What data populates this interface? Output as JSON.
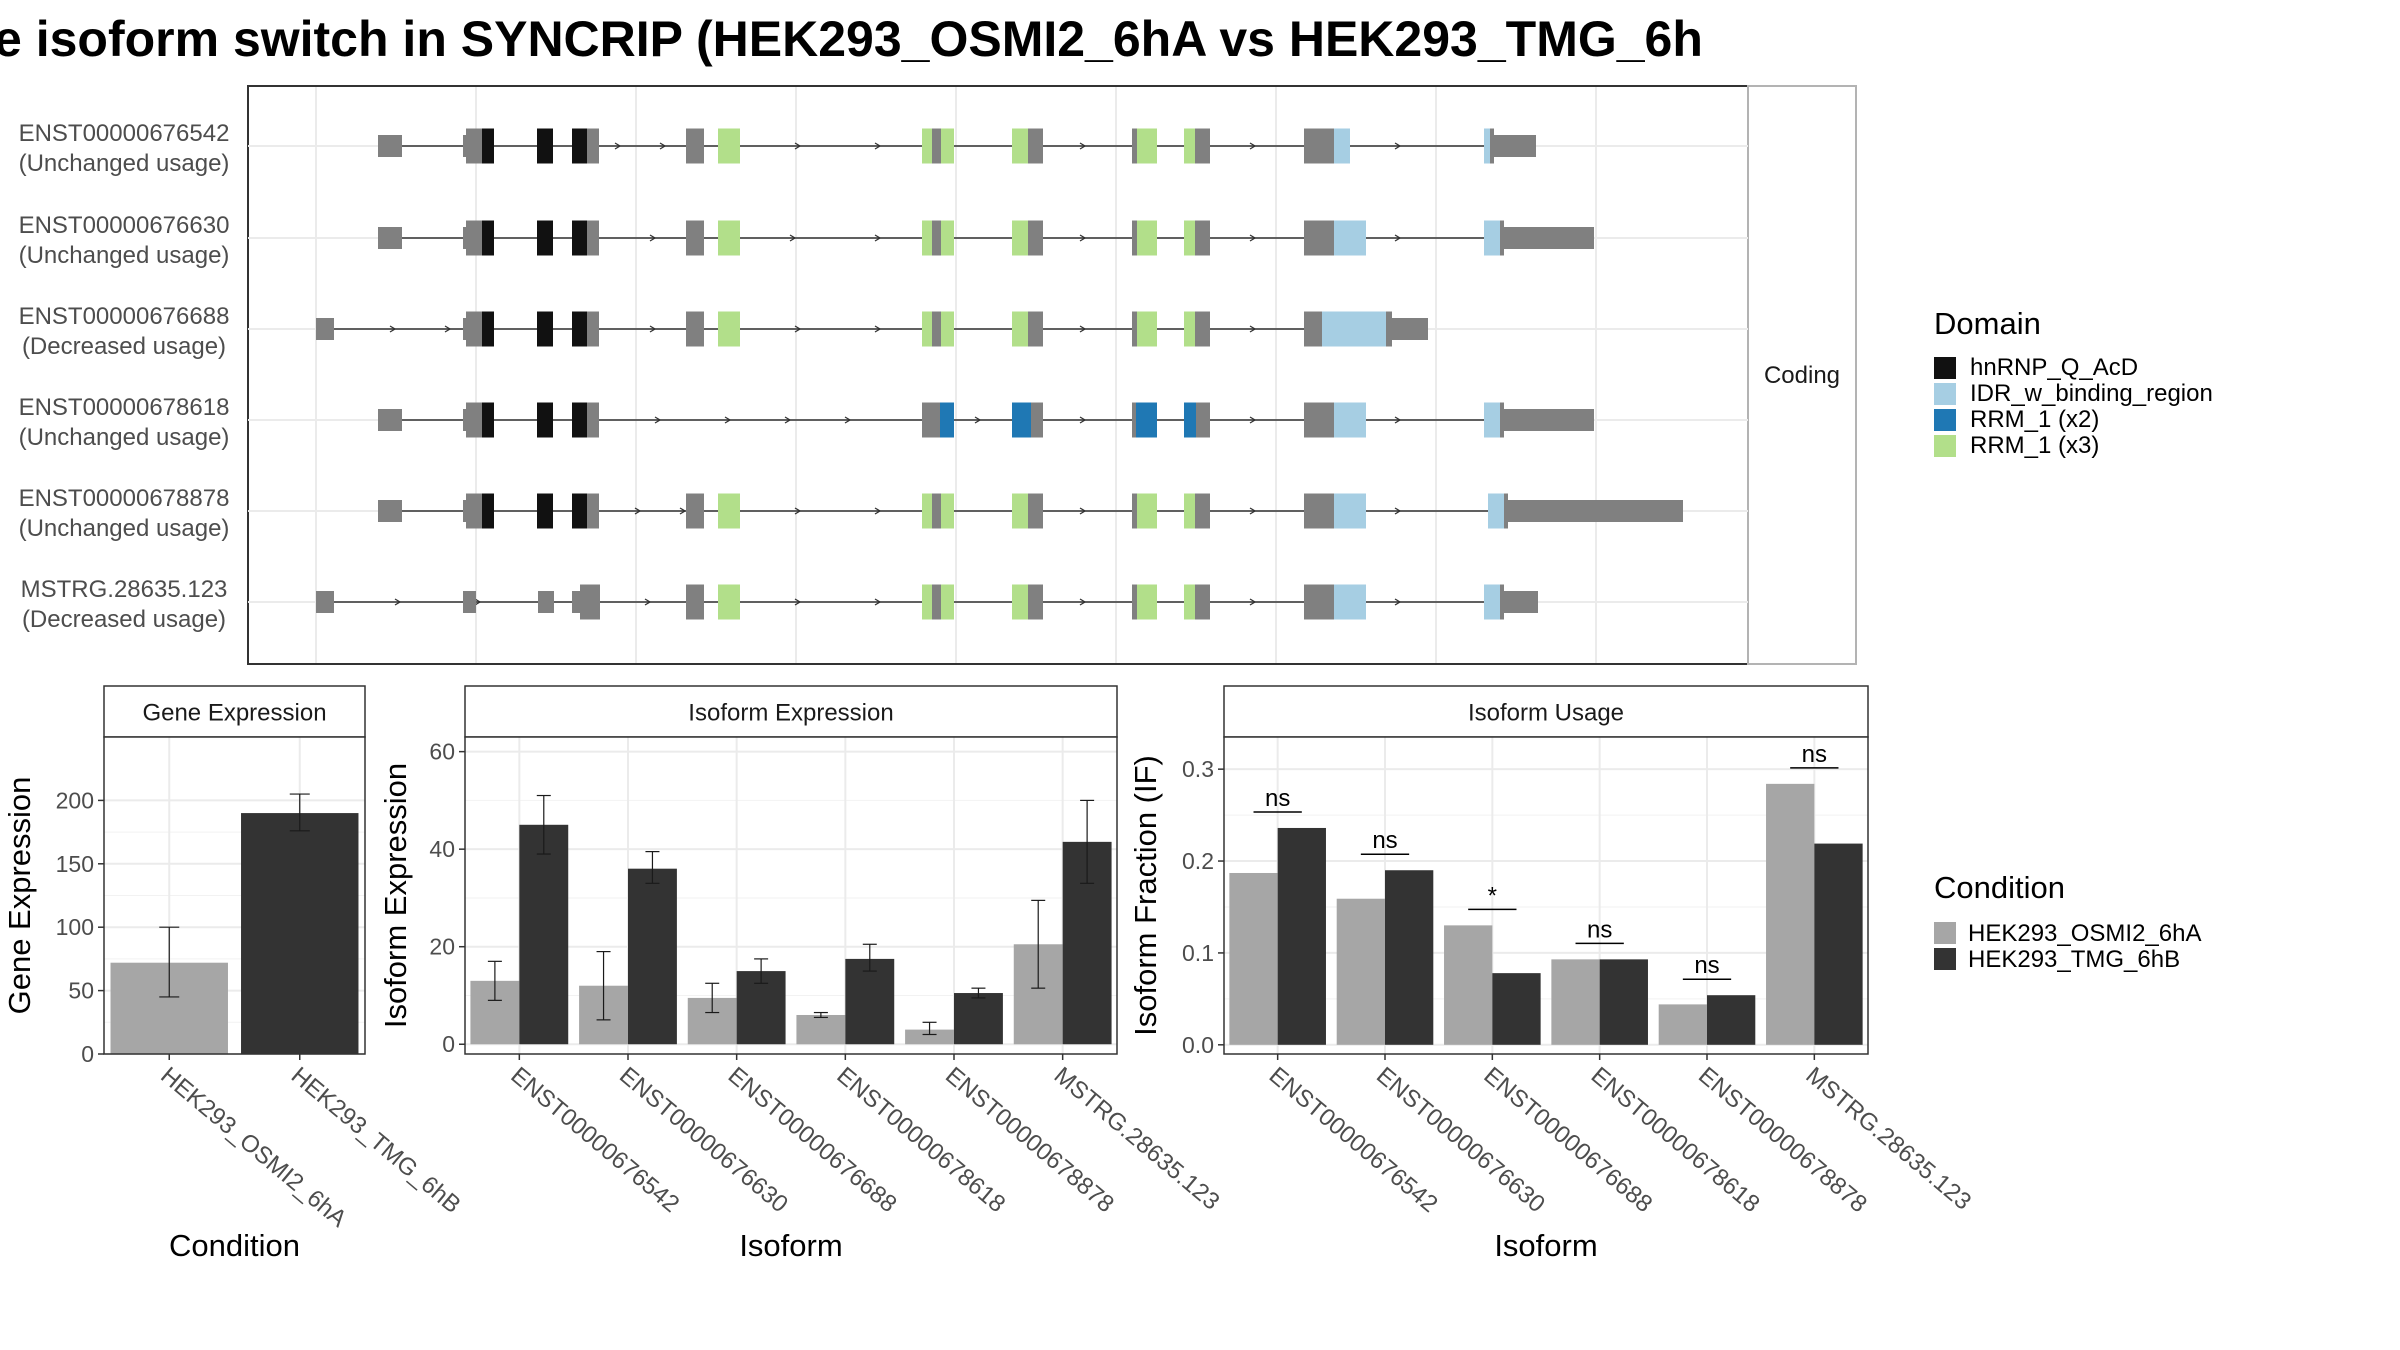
{
  "title": "e isoform switch in SYNCRIP (HEK293_OSMI2_6hA vs HEK293_TMG_6h",
  "colors": {
    "exon": "#808080",
    "hnRNP_Q_AcD": "#111111",
    "IDR_w_binding_region": "#a6cee3",
    "RRM_1_x2": "#1f78b4",
    "RRM_1_x3": "#b2df8a",
    "cond1": "#a6a6a6",
    "cond2": "#333333"
  },
  "structure": {
    "strip_label": "Coding",
    "isoforms": [
      {
        "id": "ENST00000676542",
        "usage": "(Unchanged usage)"
      },
      {
        "id": "ENST00000676630",
        "usage": "(Unchanged usage)"
      },
      {
        "id": "ENST00000676688",
        "usage": "(Decreased usage)"
      },
      {
        "id": "ENST00000678618",
        "usage": "(Unchanged usage)"
      },
      {
        "id": "ENST00000678878",
        "usage": "(Unchanged usage)"
      },
      {
        "id": "MSTRG.28635.123",
        "usage": "(Decreased usage)"
      }
    ],
    "legend_title": "Domain",
    "legend_items": [
      {
        "label": "hnRNP_Q_AcD",
        "color": "#111111"
      },
      {
        "label": "IDR_w_binding_region",
        "color": "#a6cee3"
      },
      {
        "label": "RRM_1 (x2)",
        "color": "#1f78b4"
      },
      {
        "label": "RRM_1 (x3)",
        "color": "#b2df8a"
      }
    ]
  },
  "condition_legend": {
    "title": "Condition",
    "items": [
      {
        "label": "HEK293_OSMI2_6hA",
        "color": "#a6a6a6"
      },
      {
        "label": "HEK293_TMG_6hB",
        "color": "#333333"
      }
    ]
  },
  "chart_data": [
    {
      "type": "bar",
      "title": "Gene Expression",
      "xlabel": "Condition",
      "ylabel": "Gene Expression",
      "categories": [
        "HEK293_OSMI2_6hA",
        "HEK293_TMG_6hB"
      ],
      "values": [
        72,
        190
      ],
      "err_low": [
        45,
        176
      ],
      "err_high": [
        100,
        205
      ],
      "yticks": [
        0,
        50,
        100,
        150,
        200
      ],
      "ylim": [
        0,
        250
      ]
    },
    {
      "type": "bar",
      "title": "Isoform Expression",
      "xlabel": "Isoform",
      "ylabel": "Isoform Expression",
      "categories": [
        "ENST00000676542",
        "ENST00000676630",
        "ENST00000676688",
        "ENST00000678618",
        "ENST00000678878",
        "MSTRG.28635.123"
      ],
      "series": [
        {
          "name": "HEK293_OSMI2_6hA",
          "values": [
            13,
            12,
            9.5,
            6,
            3,
            20.5
          ],
          "err_low": [
            9,
            5,
            6.5,
            5.5,
            2,
            11.5
          ],
          "err_high": [
            17,
            19,
            12.5,
            6.5,
            4.5,
            29.5
          ]
        },
        {
          "name": "HEK293_TMG_6hB",
          "values": [
            45,
            36,
            15,
            17.5,
            10.5,
            41.5
          ],
          "err_low": [
            39,
            33,
            12.5,
            15,
            9.5,
            33
          ],
          "err_high": [
            51,
            39.5,
            17.5,
            20.5,
            11.5,
            50
          ]
        }
      ],
      "yticks": [
        0,
        20,
        40,
        60
      ],
      "ylim": [
        -2,
        63
      ]
    },
    {
      "type": "bar",
      "title": "Isoform Usage",
      "xlabel": "Isoform",
      "ylabel": "Isoform Fraction (IF)",
      "categories": [
        "ENST00000676542",
        "ENST00000676630",
        "ENST00000676688",
        "ENST00000678618",
        "ENST00000678878",
        "MSTRG.28635.123"
      ],
      "series": [
        {
          "name": "HEK293_OSMI2_6hA",
          "values": [
            0.187,
            0.159,
            0.13,
            0.093,
            0.044,
            0.284
          ]
        },
        {
          "name": "HEK293_TMG_6hB",
          "values": [
            0.236,
            0.19,
            0.078,
            0.093,
            0.054,
            0.219
          ]
        }
      ],
      "significance": [
        "ns",
        "ns",
        "*",
        "ns",
        "ns",
        "ns"
      ],
      "yticks": [
        0.0,
        0.1,
        0.2,
        0.3
      ],
      "ylim": [
        -0.01,
        0.335
      ]
    }
  ]
}
